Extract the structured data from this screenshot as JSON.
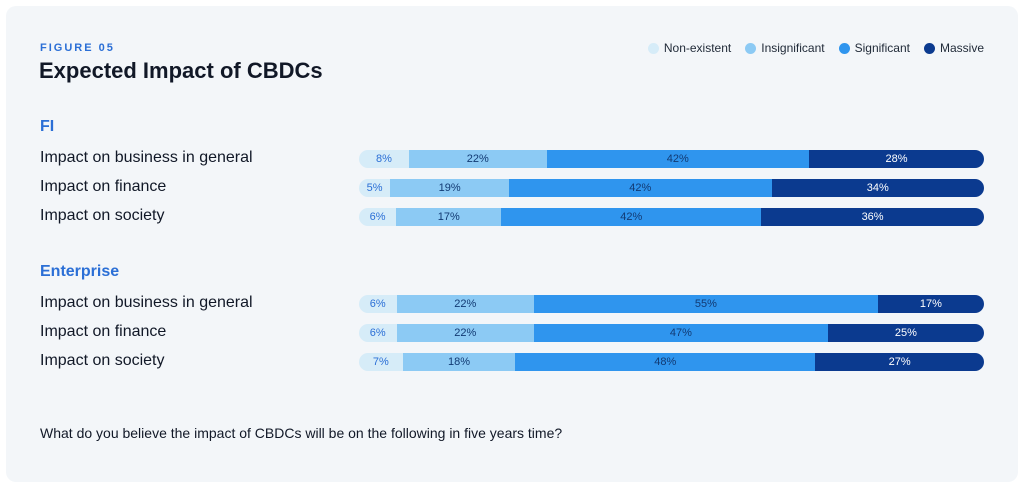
{
  "figure_label": "FIGURE 05",
  "title": "Expected Impact of CBDCs",
  "question": "What do you believe the impact of CBDCs will be on the following in five years time?",
  "colors": {
    "non_existent": "#d6ecf8",
    "insignificant": "#8ccaf4",
    "significant": "#2f95ee",
    "massive": "#0b3a8f",
    "accent": "#2b6fd6"
  },
  "chart_data": {
    "type": "bar",
    "orientation": "horizontal",
    "stacked": true,
    "unit": "%",
    "legend": [
      "Non-existent",
      "Insignificant",
      "Significant",
      "Massive"
    ],
    "legend_position": "top-right",
    "groups": [
      {
        "name": "FI",
        "rows": [
          {
            "label": "Impact on business in general",
            "values": [
              8,
              22,
              42,
              28
            ]
          },
          {
            "label": "Impact on finance",
            "values": [
              5,
              19,
              42,
              34
            ]
          },
          {
            "label": "Impact on society",
            "values": [
              6,
              17,
              42,
              36
            ]
          }
        ]
      },
      {
        "name": "Enterprise",
        "rows": [
          {
            "label": "Impact on business in general",
            "values": [
              6,
              22,
              55,
              17
            ]
          },
          {
            "label": "Impact on finance",
            "values": [
              6,
              22,
              47,
              25
            ]
          },
          {
            "label": "Impact on society",
            "values": [
              7,
              18,
              48,
              27
            ]
          }
        ]
      }
    ]
  }
}
